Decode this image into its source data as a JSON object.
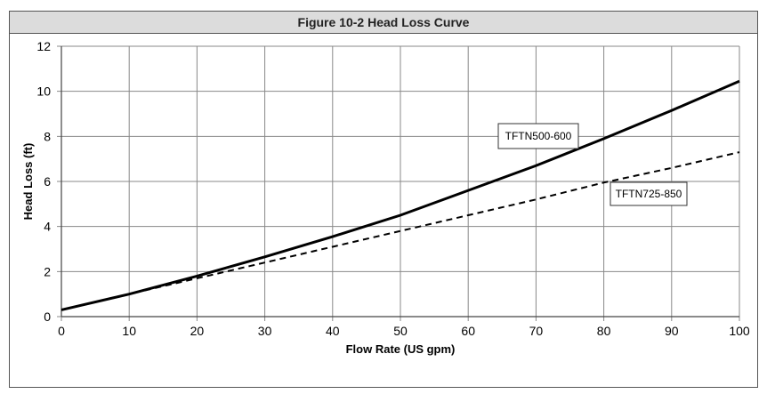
{
  "chart_data": {
    "type": "line",
    "title": "Figure 10-2 Head Loss Curve",
    "xlabel": "Flow Rate (US gpm)",
    "ylabel": "Head Loss (ft)",
    "xlim": [
      0,
      100
    ],
    "ylim": [
      0,
      12
    ],
    "xticks": [
      0,
      10,
      20,
      30,
      40,
      50,
      60,
      70,
      80,
      90,
      100
    ],
    "yticks": [
      0,
      2,
      4,
      6,
      8,
      10,
      12
    ],
    "grid": true,
    "x": [
      0,
      10,
      20,
      30,
      40,
      50,
      60,
      70,
      80,
      90,
      100
    ],
    "series": [
      {
        "name": "TFTN500-600",
        "style": "solid",
        "values": [
          0.3,
          1.0,
          1.8,
          2.65,
          3.55,
          4.5,
          5.6,
          6.7,
          7.9,
          9.15,
          10.45
        ]
      },
      {
        "name": "TFTN725-850",
        "style": "dashed",
        "values": [
          0.3,
          1.0,
          1.7,
          2.4,
          3.1,
          3.8,
          4.5,
          5.2,
          5.95,
          6.6,
          7.3
        ]
      }
    ]
  }
}
